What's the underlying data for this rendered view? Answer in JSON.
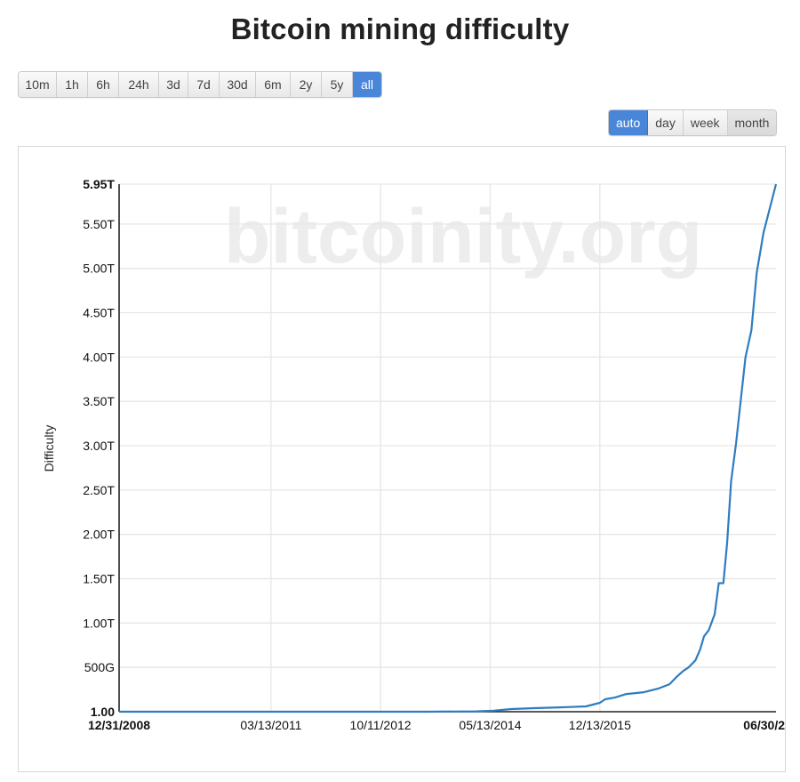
{
  "title": "Bitcoin mining difficulty",
  "range_buttons": [
    {
      "label": "10m",
      "active": false
    },
    {
      "label": "1h",
      "active": false
    },
    {
      "label": "6h",
      "active": false
    },
    {
      "label": "24h",
      "active": false
    },
    {
      "label": "3d",
      "active": false
    },
    {
      "label": "7d",
      "active": false
    },
    {
      "label": "30d",
      "active": false
    },
    {
      "label": "6m",
      "active": false
    },
    {
      "label": "2y",
      "active": false
    },
    {
      "label": "5y",
      "active": false
    },
    {
      "label": "all",
      "active": true
    }
  ],
  "resolution_buttons": [
    {
      "label": "auto",
      "active": true
    },
    {
      "label": "day",
      "active": false
    },
    {
      "label": "week",
      "active": false
    },
    {
      "label": "month",
      "active": false,
      "dim": true
    }
  ],
  "colors": {
    "accent": "#4a86d8",
    "line": "#2f7cc0",
    "grid": "#e6e6e6",
    "watermark": "#ededed"
  },
  "chart_data": {
    "type": "line",
    "title": "",
    "watermark": "bitcoinity.org",
    "xlabel": "",
    "ylabel": "Difficulty",
    "ylim": [
      0,
      5.95
    ],
    "y_unit": "T",
    "y_ticks": [
      {
        "value": 0,
        "label": "1.00"
      },
      {
        "value": 0.5,
        "label": "500G"
      },
      {
        "value": 1.0,
        "label": "1.00T"
      },
      {
        "value": 1.5,
        "label": "1.50T"
      },
      {
        "value": 2.0,
        "label": "2.00T"
      },
      {
        "value": 2.5,
        "label": "2.50T"
      },
      {
        "value": 3.0,
        "label": "3.00T"
      },
      {
        "value": 3.5,
        "label": "3.50T"
      },
      {
        "value": 4.0,
        "label": "4.00T"
      },
      {
        "value": 4.5,
        "label": "4.50T"
      },
      {
        "value": 5.0,
        "label": "5.00T"
      },
      {
        "value": 5.5,
        "label": "5.50T"
      },
      {
        "value": 5.95,
        "label": "5.95T"
      }
    ],
    "xlim": [
      "2008-12-31",
      "2018-06-30"
    ],
    "x_ticks": [
      {
        "date": "2008-12-31",
        "label": "12/31/2008",
        "bold": true
      },
      {
        "date": "2011-03-13",
        "label": "03/13/2011",
        "bold": false
      },
      {
        "date": "2012-10-11",
        "label": "10/11/2012",
        "bold": false
      },
      {
        "date": "2014-05-13",
        "label": "05/13/2014",
        "bold": false
      },
      {
        "date": "2015-12-13",
        "label": "12/13/2015",
        "bold": false
      },
      {
        "date": "2018-06-30",
        "label": "06/30/2",
        "bold": true
      }
    ],
    "grid": true,
    "series": [
      {
        "values": [
          {
            "x": "2008-12-31",
            "y": 0
          },
          {
            "x": "2011-01-01",
            "y": 0
          },
          {
            "x": "2013-06-01",
            "y": 0
          },
          {
            "x": "2014-03-01",
            "y": 0.004
          },
          {
            "x": "2014-06-01",
            "y": 0.012
          },
          {
            "x": "2014-09-01",
            "y": 0.03
          },
          {
            "x": "2015-01-01",
            "y": 0.04
          },
          {
            "x": "2015-06-01",
            "y": 0.05
          },
          {
            "x": "2015-10-01",
            "y": 0.06
          },
          {
            "x": "2015-12-13",
            "y": 0.1
          },
          {
            "x": "2016-01-10",
            "y": 0.14
          },
          {
            "x": "2016-03-01",
            "y": 0.16
          },
          {
            "x": "2016-05-01",
            "y": 0.2
          },
          {
            "x": "2016-08-01",
            "y": 0.22
          },
          {
            "x": "2016-10-15",
            "y": 0.26
          },
          {
            "x": "2016-12-15",
            "y": 0.31
          },
          {
            "x": "2017-01-20",
            "y": 0.39
          },
          {
            "x": "2017-02-25",
            "y": 0.46
          },
          {
            "x": "2017-03-25",
            "y": 0.5
          },
          {
            "x": "2017-05-01",
            "y": 0.58
          },
          {
            "x": "2017-05-25",
            "y": 0.7
          },
          {
            "x": "2017-06-15",
            "y": 0.85
          },
          {
            "x": "2017-07-10",
            "y": 0.92
          },
          {
            "x": "2017-08-10",
            "y": 1.1
          },
          {
            "x": "2017-09-01",
            "y": 1.45
          },
          {
            "x": "2017-09-25",
            "y": 1.45
          },
          {
            "x": "2017-10-15",
            "y": 1.9
          },
          {
            "x": "2017-11-05",
            "y": 2.6
          },
          {
            "x": "2017-12-01",
            "y": 3.02
          },
          {
            "x": "2017-12-25",
            "y": 3.5
          },
          {
            "x": "2018-01-20",
            "y": 4.0
          },
          {
            "x": "2018-02-20",
            "y": 4.3
          },
          {
            "x": "2018-03-20",
            "y": 4.95
          },
          {
            "x": "2018-04-25",
            "y": 5.4
          },
          {
            "x": "2018-06-30",
            "y": 5.95
          }
        ]
      }
    ]
  }
}
